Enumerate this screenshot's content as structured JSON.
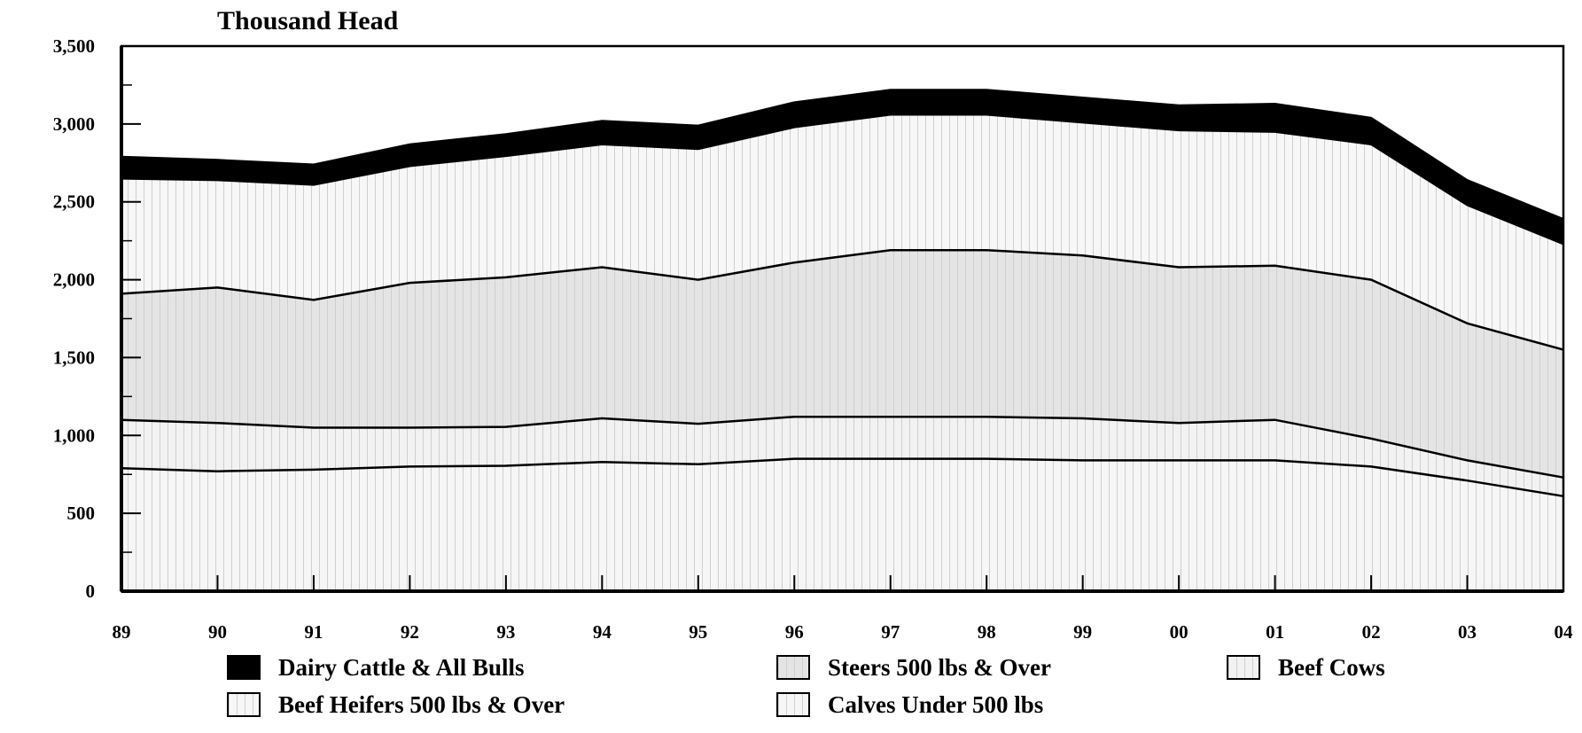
{
  "chart_data": {
    "type": "area",
    "stacked": true,
    "unit_label": "Thousand Head",
    "x": [
      "89",
      "90",
      "91",
      "92",
      "93",
      "94",
      "95",
      "96",
      "97",
      "98",
      "99",
      "00",
      "01",
      "02",
      "03",
      "04"
    ],
    "ylim": [
      0,
      3500
    ],
    "y_ticks": [
      0,
      500,
      1000,
      1500,
      2000,
      2500,
      3000,
      3500
    ],
    "y_tick_labels": [
      "0",
      "500",
      "1,000",
      "1,500",
      "2,000",
      "2,500",
      "3,000",
      "3,500"
    ],
    "series": [
      {
        "name": "Calves Under 500 lbs",
        "color": "#f6f6f6",
        "values": [
          790,
          770,
          780,
          800,
          805,
          830,
          815,
          850,
          850,
          850,
          840,
          840,
          840,
          800,
          710,
          610
        ]
      },
      {
        "name": "Beef Cows",
        "color": "#f2f2f2",
        "values": [
          310,
          310,
          270,
          250,
          250,
          280,
          260,
          270,
          270,
          270,
          270,
          240,
          260,
          180,
          130,
          120
        ]
      },
      {
        "name": "Steers 500 lbs & Over",
        "color": "#e4e4e4",
        "values": [
          810,
          870,
          820,
          930,
          960,
          970,
          925,
          990,
          1070,
          1070,
          1045,
          1000,
          990,
          1020,
          880,
          820
        ]
      },
      {
        "name": "Beef Heifers 500 lbs & Over",
        "color": "#f7f7f7",
        "values": [
          740,
          690,
          740,
          750,
          780,
          790,
          840,
          870,
          870,
          870,
          855,
          880,
          860,
          870,
          760,
          680
        ]
      },
      {
        "name": "Dairy Cattle & All Bulls",
        "color": "#000000",
        "values": [
          140,
          130,
          130,
          140,
          140,
          150,
          150,
          160,
          160,
          160,
          160,
          160,
          180,
          170,
          160,
          160
        ]
      }
    ],
    "legend": {
      "position": "bottom",
      "order": [
        "Dairy Cattle & All Bulls",
        "Steers 500 lbs & Over",
        "Beef Cows",
        "Beef Heifers 500 lbs & Over",
        "Calves Under 500 lbs"
      ]
    },
    "grid": false
  }
}
